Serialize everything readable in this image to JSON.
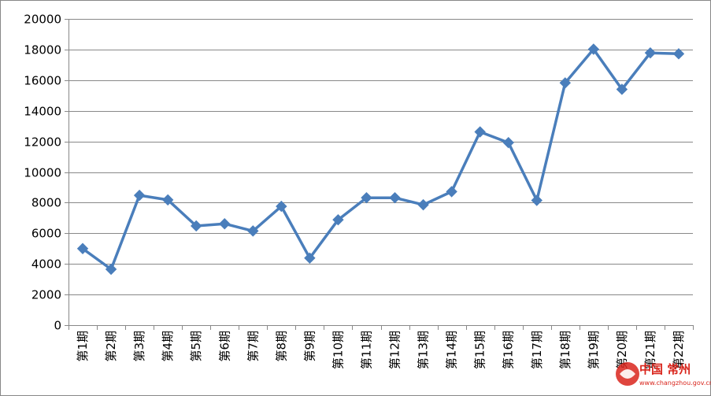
{
  "chart_data": {
    "type": "line",
    "categories": [
      "第1期",
      "第2期",
      "第3期",
      "第4期",
      "第5期",
      "第6期",
      "第7期",
      "第8期",
      "第9期",
      "第10期",
      "第11期",
      "第12期",
      "第13期",
      "第14期",
      "第15期",
      "第16期",
      "第17期",
      "第18期",
      "第19期",
      "第20期",
      "第21期",
      "第22期"
    ],
    "series": [
      {
        "values": [
          5000,
          3650,
          8480,
          8180,
          6480,
          6620,
          6150,
          7760,
          4380,
          6880,
          8320,
          8320,
          7860,
          8720,
          12620,
          11920,
          8150,
          15820,
          18020,
          15400,
          17780,
          17720
        ]
      }
    ],
    "ylim": [
      0,
      20000
    ],
    "yticks": [
      0,
      2000,
      4000,
      6000,
      8000,
      10000,
      12000,
      14000,
      16000,
      18000,
      20000
    ],
    "grid": true,
    "legend": "none",
    "colors": {
      "line": "#4a7ebb",
      "grid": "#888888",
      "axis": "#888888"
    }
  },
  "watermark": {
    "icon": "china-changzhou-logo-icon",
    "text": "中国 常州",
    "url": "www.changzhou.gov.cn"
  }
}
